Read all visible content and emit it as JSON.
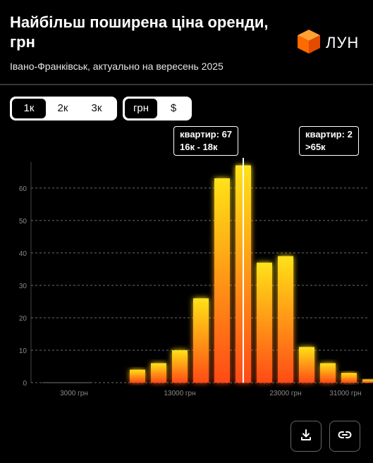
{
  "header": {
    "title": "Найбільш поширена ціна оренди, грн",
    "subtitle": "Івано-Франківськ, актуально на вересень 2025",
    "logo_text": "ЛУН",
    "logo_icon": "orange-cube-icon"
  },
  "filters": {
    "rooms": [
      {
        "label": "1к",
        "active": true
      },
      {
        "label": "2к",
        "active": false
      },
      {
        "label": "3к",
        "active": false
      }
    ],
    "currency": [
      {
        "label": "грн",
        "active": true
      },
      {
        "label": "$",
        "active": false
      }
    ]
  },
  "tooltips": [
    {
      "line1": "квартир: 67",
      "line2": "16к - 18к"
    },
    {
      "line1": "квартир: 2",
      "line2": ">65к"
    }
  ],
  "chart_data": {
    "type": "bar",
    "values": [
      0,
      0,
      0,
      4,
      6,
      10,
      26,
      63,
      67,
      37,
      39,
      11,
      6,
      3,
      1,
      2
    ],
    "highlighted_index": 8,
    "y_ticks": [
      0,
      10,
      20,
      30,
      40,
      50,
      60
    ],
    "ylim": [
      0,
      68
    ],
    "x_ticks": [
      {
        "label": "3000 грн",
        "bin": 1
      },
      {
        "label": "13000 грн",
        "bin": 6
      },
      {
        "label": "23000 грн",
        "bin": 11
      },
      {
        "label": "31000 грн",
        "bin": 15
      }
    ],
    "grid": true,
    "colors": {
      "bar_top": "#ffe21a",
      "bar_bottom": "#ff4a12",
      "grid": "#6b6b6b",
      "axis_text": "#8a8a8a",
      "marker": "#ffffff"
    }
  },
  "actions": {
    "download_icon": "download-icon",
    "link_icon": "link-icon"
  }
}
